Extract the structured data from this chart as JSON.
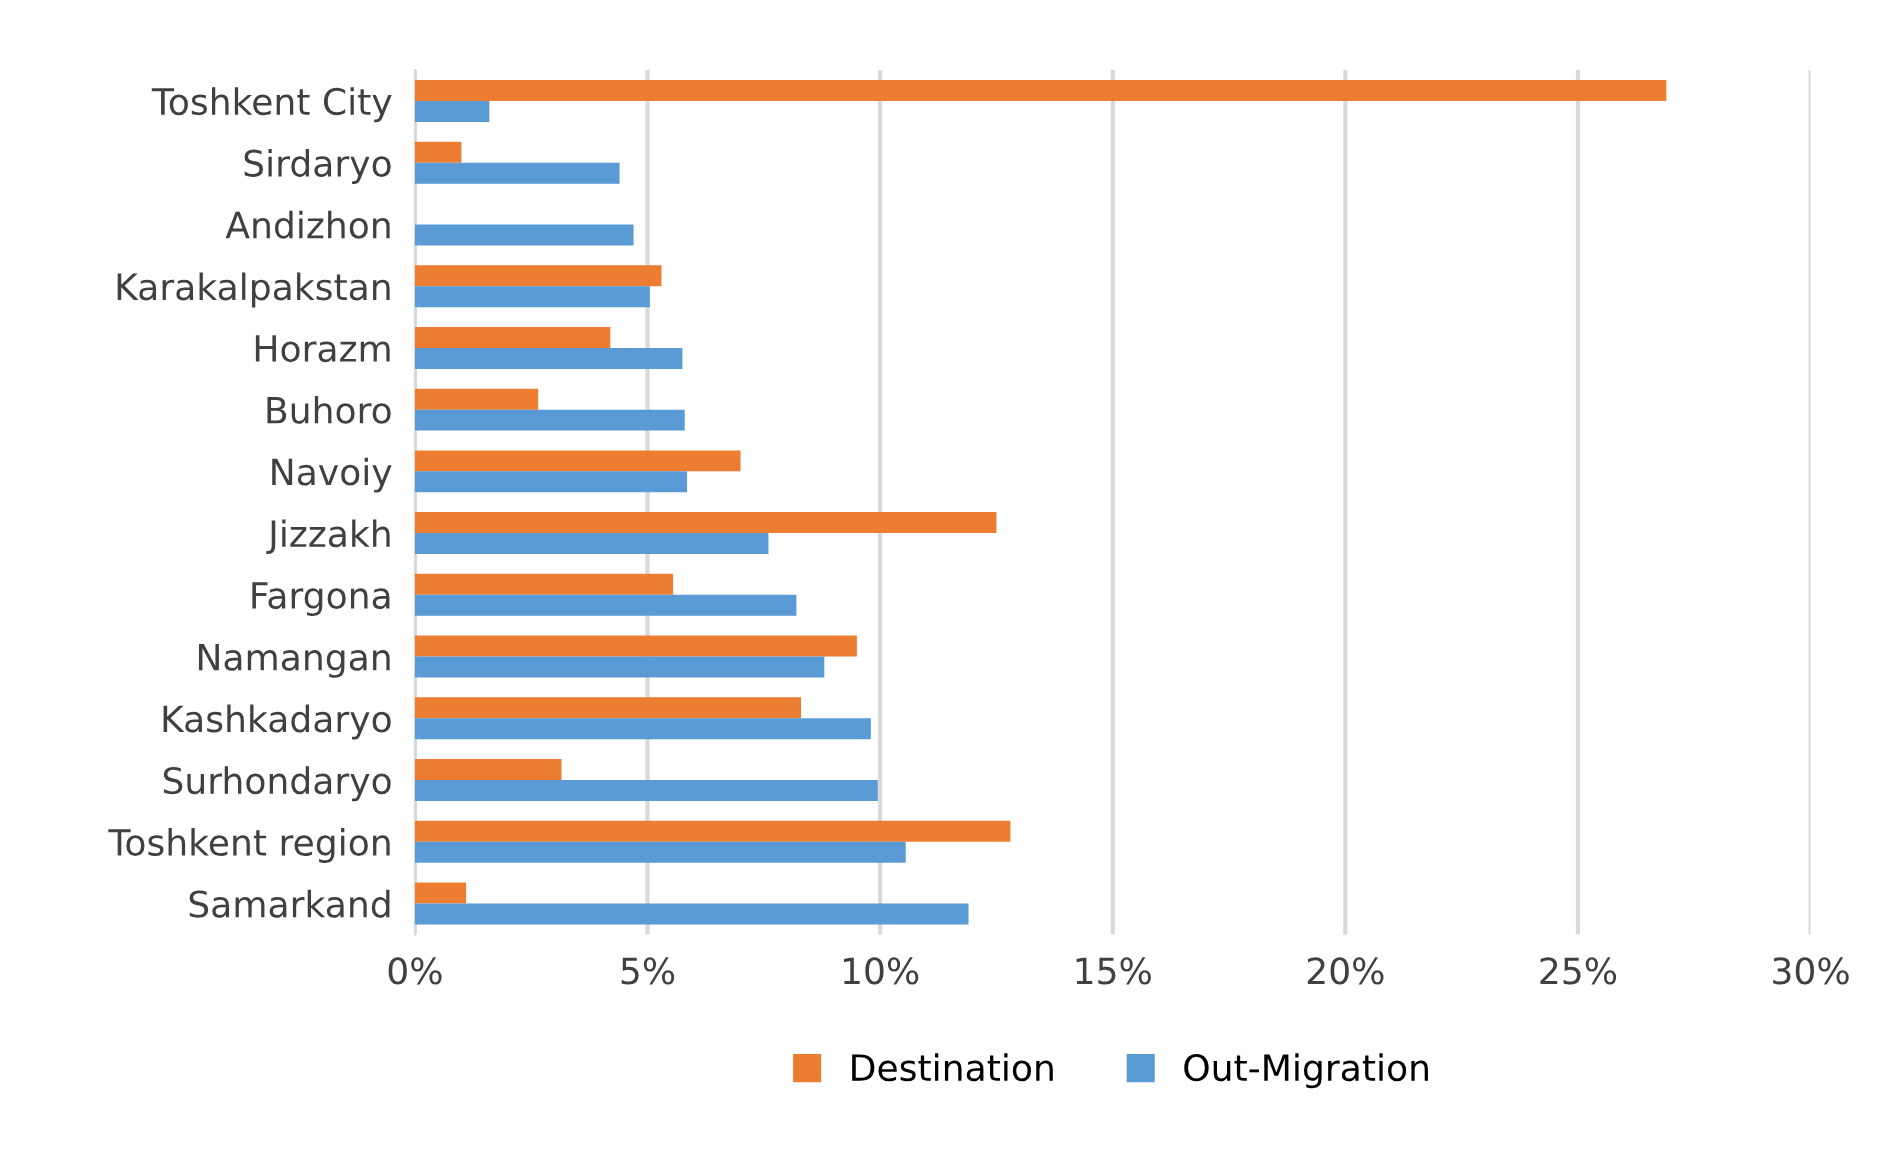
{
  "chart_data": {
    "type": "bar",
    "orientation": "horizontal",
    "categories": [
      "Toshkent City",
      "Sirdaryo",
      "Andizhon",
      "Karakalpakstan",
      "Horazm",
      "Buhoro",
      "Navoiy",
      "Jizzakh",
      "Fargona",
      "Namangan",
      "Kashkadaryo",
      "Surhondaryo",
      "Toshkent region",
      "Samarkand"
    ],
    "series": [
      {
        "name": "Destination",
        "color": "#ed7d31",
        "values": [
          26.9,
          1.0,
          0,
          5.3,
          4.2,
          2.65,
          7.0,
          12.5,
          5.55,
          9.5,
          8.3,
          3.15,
          12.8,
          1.1
        ]
      },
      {
        "name": "Out-Migration",
        "color": "#5b9bd5",
        "values": [
          1.6,
          4.4,
          4.7,
          5.05,
          5.75,
          5.8,
          5.85,
          7.6,
          8.2,
          8.8,
          9.8,
          9.95,
          10.55,
          11.9
        ]
      }
    ],
    "xlim": [
      0,
      30
    ],
    "xticks": [
      {
        "value": 0,
        "label": "0%"
      },
      {
        "value": 5,
        "label": "5%"
      },
      {
        "value": 10,
        "label": "10%"
      },
      {
        "value": 15,
        "label": "15%"
      },
      {
        "value": 20,
        "label": "20%"
      },
      {
        "value": 25,
        "label": "25%"
      },
      {
        "value": 30,
        "label": "30%"
      }
    ],
    "grid": "x",
    "legend": "bottom"
  }
}
